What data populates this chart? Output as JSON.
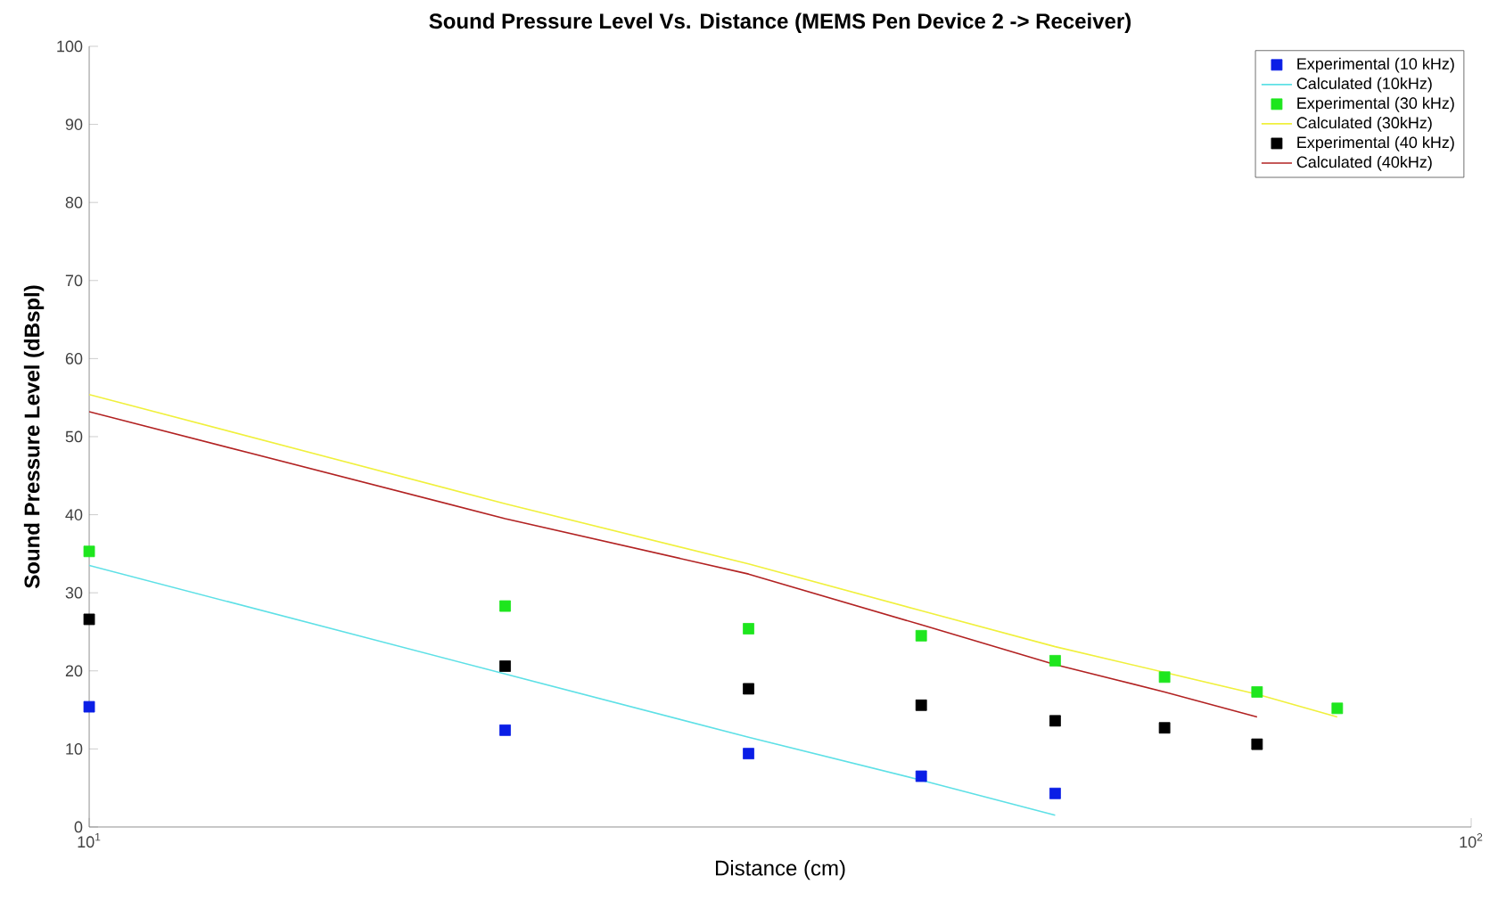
{
  "chart_data": {
    "type": "scatter",
    "title": "Sound Pressure Level Vs. Distance (MEMS Pen Device 2 -> Receiver)",
    "xlabel": "Distance (cm)",
    "ylabel": "Sound Pressure Level (dBspl)",
    "log": "x",
    "xlim": [
      10,
      100
    ],
    "xticks": [
      {
        "value": 10,
        "label": "10$^{1}$"
      },
      {
        "value": 100,
        "label": "10$^{2}$"
      }
    ],
    "ylim": [
      0,
      100
    ],
    "yticks": [
      0,
      10,
      20,
      30,
      40,
      50,
      60,
      70,
      80,
      90,
      100
    ],
    "grid": false,
    "legend": "top right",
    "series": [
      {
        "name": "Experimental (10 kHz)",
        "marker": "square",
        "color": "#0a1ee6",
        "x": [
          10,
          20,
          30,
          40,
          50
        ],
        "values": [
          15.4,
          12.4,
          9.4,
          6.5,
          4.3
        ]
      },
      {
        "name": "Calculated (10kHz)",
        "type": "line",
        "marker": "none",
        "color": "#5ee0e6",
        "x": [
          10,
          20,
          30,
          40,
          50
        ],
        "values": [
          33.5,
          19.6,
          11.5,
          6.0,
          1.5
        ]
      },
      {
        "name": "Experimental (30 kHz)",
        "marker": "square",
        "color": "#1ee61e",
        "x": [
          10,
          20,
          30,
          40,
          50,
          60,
          70,
          80
        ],
        "values": [
          35.3,
          28.3,
          25.4,
          24.5,
          21.3,
          19.2,
          17.3,
          15.2
        ]
      },
      {
        "name": "Calculated (30kHz)",
        "type": "line",
        "marker": "none",
        "color": "#f0f03c",
        "x": [
          10,
          20,
          30,
          40,
          50,
          60,
          70,
          80
        ],
        "values": [
          55.4,
          41.4,
          33.7,
          27.7,
          23.1,
          19.8,
          17.0,
          14.1
        ]
      },
      {
        "name": "Experimental (40 kHz)",
        "marker": "square",
        "color": "#000000",
        "x": [
          10,
          20,
          30,
          40,
          50,
          60,
          70
        ],
        "values": [
          26.6,
          20.6,
          17.7,
          15.6,
          13.6,
          12.7,
          10.6
        ]
      },
      {
        "name": "Calculated (40kHz)",
        "type": "line",
        "marker": "none",
        "color": "#b22222",
        "x": [
          10,
          20,
          30,
          40,
          50,
          60,
          70
        ],
        "values": [
          53.2,
          39.5,
          32.4,
          25.9,
          20.8,
          17.3,
          14.1
        ]
      }
    ]
  }
}
